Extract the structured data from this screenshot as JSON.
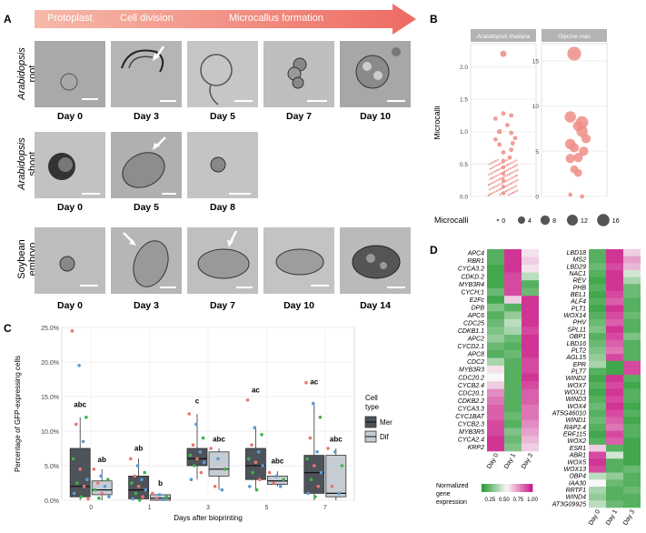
{
  "panels": {
    "a": "A",
    "b": "B",
    "c": "C",
    "d": "D"
  },
  "panel_a": {
    "arrow_stages": [
      "Protoplast",
      "Cell division",
      "Microcallus formation"
    ],
    "rows": [
      {
        "label_italic": "Arabidopsis",
        "label_rest": "root",
        "days": [
          "Day 0",
          "Day 3",
          "Day 5",
          "Day 7",
          "Day 10"
        ]
      },
      {
        "label_italic": "Arabidopsis",
        "label_rest": "shoot",
        "days": [
          "Day 0",
          "Day 5",
          "Day 8"
        ]
      },
      {
        "label_italic": "",
        "label_rest": "Soybean embryo",
        "days": [
          "Day 0",
          "Day 3",
          "Day 7",
          "Day 10",
          "Day 14"
        ]
      }
    ]
  },
  "chart_data": [
    {
      "type": "scatter",
      "panel": "B",
      "ylabel": "Microcalli",
      "facets": [
        {
          "name": "Arabidopsis thaliana",
          "yticks": [
            0.0,
            0.5,
            1.0,
            1.5,
            2.0
          ],
          "ylim": [
            0,
            2.3
          ],
          "points": [
            [
              0.0,
              2.2,
              2
            ],
            [
              0.0,
              1.28,
              0.6
            ],
            [
              0.1,
              1.25,
              0.6
            ],
            [
              -0.1,
              1.2,
              0.6
            ],
            [
              0.05,
              1.1,
              0.6
            ],
            [
              -0.05,
              1.0,
              1
            ],
            [
              0.1,
              0.98,
              0.6
            ],
            [
              0.15,
              0.9,
              0.6
            ],
            [
              -0.1,
              0.88,
              0.6
            ],
            [
              0.12,
              0.82,
              0.6
            ],
            [
              -0.05,
              0.8,
              0.6
            ],
            [
              0.1,
              0.72,
              0.6
            ],
            [
              0.0,
              0.68,
              0.6
            ],
            [
              0.08,
              0.6,
              0.6
            ],
            [
              0.0,
              0.55,
              0.5
            ],
            [
              0.0,
              0.45,
              0.4
            ],
            [
              0.0,
              0.35,
              0.4
            ],
            [
              0.0,
              0.25,
              0.4
            ],
            [
              0.0,
              0.15,
              0.4
            ],
            [
              0.0,
              0.05,
              0.4
            ]
          ]
        },
        {
          "name": "Glycine max",
          "yticks": [
            0,
            5,
            10,
            15
          ],
          "ylim": [
            0,
            16.5
          ],
          "points": [
            [
              0.0,
              15.8,
              16
            ],
            [
              -0.05,
              8.8,
              10
            ],
            [
              0.1,
              8.2,
              12
            ],
            [
              0.05,
              7.8,
              8
            ],
            [
              0.1,
              7.2,
              10
            ],
            [
              0.15,
              6.4,
              6
            ],
            [
              -0.05,
              5.8,
              8
            ],
            [
              0.0,
              5.4,
              6
            ],
            [
              0.12,
              5.0,
              6
            ],
            [
              0.05,
              4.3,
              6
            ],
            [
              -0.05,
              4.2,
              6
            ],
            [
              0.0,
              3.0,
              4
            ],
            [
              0.05,
              2.6,
              4
            ],
            [
              -0.05,
              0.2,
              0.5
            ],
            [
              0.1,
              0.0,
              0.5
            ]
          ]
        }
      ],
      "legend": {
        "title": "Microcalli",
        "values": [
          0,
          4,
          8,
          12,
          16
        ]
      }
    },
    {
      "type": "box",
      "panel": "C",
      "ylabel": "Percentage of GFP-expressing cells",
      "xlabel": "Days after bioprinting",
      "categories": [
        "0",
        "1",
        "3",
        "5",
        "7"
      ],
      "ylim": [
        0,
        25
      ],
      "yticks": [
        "0.0%",
        "5.0%",
        "10.0%",
        "15.0%",
        "20.0%",
        "25.0%"
      ],
      "legend": {
        "title": "Cell type",
        "entries": [
          "Mer",
          "Dif"
        ]
      },
      "series": [
        {
          "name": "Mer",
          "color": "#4d5359",
          "boxes": [
            {
              "min": 0,
              "q1": 0.5,
              "median": 2,
              "q3": 7.5,
              "max": 12
            },
            {
              "min": 0,
              "q1": 0.2,
              "median": 1.5,
              "q3": 3.5,
              "max": 6
            },
            {
              "min": 3,
              "q1": 5,
              "median": 6,
              "q3": 7.5,
              "max": 12.5
            },
            {
              "min": 1.5,
              "q1": 3,
              "median": 5,
              "q3": 7.5,
              "max": 10.5
            },
            {
              "min": 0,
              "q1": 1,
              "median": 4,
              "q3": 6.5,
              "max": 14
            }
          ]
        },
        {
          "name": "Dif",
          "color": "#c6ccd4",
          "boxes": [
            {
              "min": 0,
              "q1": 0.8,
              "median": 1.5,
              "q3": 2.8,
              "max": 4.5
            },
            {
              "min": 0,
              "q1": 0,
              "median": 0.3,
              "q3": 0.8,
              "max": 1
            },
            {
              "min": 1.5,
              "q1": 3.5,
              "median": 4.5,
              "q3": 7,
              "max": 7.5
            },
            {
              "min": 2,
              "q1": 2.3,
              "median": 2.8,
              "q3": 3.5,
              "max": 4.2
            },
            {
              "min": 0,
              "q1": 0.5,
              "median": 1,
              "q3": 6.5,
              "max": 7.5
            }
          ]
        }
      ],
      "letters": [
        {
          "cat": 0,
          "group": "Mer",
          "text": "abc",
          "y": 13.5
        },
        {
          "cat": 0,
          "group": "Dif",
          "text": "ab",
          "y": 5.5
        },
        {
          "cat": 1,
          "group": "Mer",
          "text": "ab",
          "y": 7.2
        },
        {
          "cat": 1,
          "group": "Dif",
          "text": "b",
          "y": 2.1
        },
        {
          "cat": 2,
          "group": "Mer",
          "text": "c",
          "y": 14
        },
        {
          "cat": 2,
          "group": "Dif",
          "text": "abc",
          "y": 8.5
        },
        {
          "cat": 3,
          "group": "Mer",
          "text": "ac",
          "y": 15.6
        },
        {
          "cat": 3,
          "group": "Dif",
          "text": "abc",
          "y": 5.3
        },
        {
          "cat": 4,
          "group": "Mer",
          "text": "ac",
          "y": 16.8
        },
        {
          "cat": 4,
          "group": "Dif",
          "text": "abc",
          "y": 8.5
        }
      ],
      "points": [
        {
          "cat": 0,
          "group": "Mer",
          "y": [
            24.5,
            19.5,
            12,
            11,
            8.5,
            6,
            4.5,
            3,
            2.5,
            2,
            1,
            0.5,
            0.2
          ]
        },
        {
          "cat": 0,
          "group": "Dif",
          "y": [
            4.5,
            3.5,
            3,
            2.5,
            2,
            1.5,
            1,
            0.5,
            0.3
          ]
        },
        {
          "cat": 1,
          "group": "Mer",
          "y": [
            6,
            5,
            4,
            3.5,
            3,
            2.5,
            2,
            1.5,
            1,
            0.5,
            0.2,
            0
          ]
        },
        {
          "cat": 1,
          "group": "Dif",
          "y": [
            1,
            0.8,
            0.5,
            0.3,
            0.1
          ]
        },
        {
          "cat": 2,
          "group": "Mer",
          "y": [
            12.5,
            11,
            9,
            8,
            7,
            6.5,
            6,
            5.5,
            5,
            4,
            3
          ]
        },
        {
          "cat": 2,
          "group": "Dif",
          "y": [
            7.5,
            6,
            4.5,
            2,
            1.5
          ]
        },
        {
          "cat": 3,
          "group": "Mer",
          "y": [
            14.5,
            10.5,
            9.5,
            8,
            7,
            6,
            5.5,
            5,
            4,
            3,
            2,
            1.5
          ]
        },
        {
          "cat": 3,
          "group": "Dif",
          "y": [
            4,
            3.5,
            3,
            2.5,
            2
          ]
        },
        {
          "cat": 4,
          "group": "Mer",
          "y": [
            17,
            14,
            12,
            9,
            7,
            6,
            5,
            4,
            3,
            2,
            1,
            0.5
          ]
        },
        {
          "cat": 4,
          "group": "Dif",
          "y": [
            7.5,
            7,
            5,
            2,
            1
          ]
        }
      ]
    },
    {
      "type": "heatmap",
      "panel": "D",
      "columns": [
        "Day 0",
        "Day 1",
        "Day 3"
      ],
      "legend": {
        "title": [
          "Normalized",
          "gene",
          "expression"
        ],
        "ticks": [
          "0.25",
          "0.50",
          "0.75",
          "1.00"
        ]
      },
      "heatmaps": [
        {
          "rows": [
            "APC4",
            "RBR1",
            "CYCA3.2",
            "CDKD.2",
            "MYB3R4",
            "CYCH;1",
            "E2Fc",
            "DPB",
            "APC6",
            "CDC25",
            "CDKB1.1",
            "APC2",
            "CYCD2.1",
            "APC8",
            "CDC2",
            "MYB3R3",
            "CDC20.2",
            "CYCB2.4",
            "CDC20.1",
            "CDKB2.2",
            "CYCA3.3",
            "CYC1BAT",
            "CYCB2.3",
            "MYB3R5",
            "CYCA2.4",
            "KRP2"
          ],
          "values": [
            [
              0.1,
              0.95,
              0.55
            ],
            [
              0.1,
              0.95,
              0.6
            ],
            [
              0.05,
              0.95,
              0.55
            ],
            [
              0.05,
              0.9,
              0.35
            ],
            [
              0.05,
              0.9,
              0.1
            ],
            [
              0.15,
              0.9,
              0.15
            ],
            [
              0.05,
              0.6,
              0.95
            ],
            [
              0.2,
              0.1,
              0.95
            ],
            [
              0.1,
              0.25,
              0.95
            ],
            [
              0.15,
              0.35,
              0.95
            ],
            [
              0.2,
              0.3,
              0.9
            ],
            [
              0.25,
              0.15,
              0.95
            ],
            [
              0.15,
              0.1,
              0.95
            ],
            [
              0.1,
              0.15,
              0.95
            ],
            [
              0.3,
              0.1,
              0.9
            ],
            [
              0.55,
              0.1,
              0.9
            ],
            [
              0.5,
              0.1,
              0.95
            ],
            [
              0.6,
              0.1,
              0.9
            ],
            [
              0.75,
              0.1,
              0.85
            ],
            [
              0.8,
              0.1,
              0.85
            ],
            [
              0.85,
              0.1,
              0.8
            ],
            [
              0.85,
              0.15,
              0.8
            ],
            [
              0.9,
              0.1,
              0.75
            ],
            [
              0.9,
              0.2,
              0.7
            ],
            [
              0.95,
              0.15,
              0.65
            ],
            [
              0.95,
              0.2,
              0.6
            ]
          ]
        },
        {
          "rows": [
            "LBD18",
            "MS2",
            "LBD29",
            "NAC1",
            "REV",
            "PHB",
            "BEL1",
            "ALF4",
            "PLT1",
            "WOX14",
            "PHV",
            "SPL11",
            "OBP1",
            "LBD16",
            "PLT2",
            "AGL15",
            "EPR",
            "PLT7",
            "WIND2",
            "WOX7",
            "WOX11",
            "WIND3",
            "WOX4",
            "AT5G46010",
            "WIND1",
            "RAP2.4",
            "ERF115",
            "WOX2",
            "ESR1",
            "ABR1",
            "WOX5",
            "WOX13",
            "OBP4",
            "IAA30",
            "RRTF1",
            "WIND4",
            "AT3G09925"
          ],
          "values": [
            [
              0.1,
              0.95,
              0.6
            ],
            [
              0.1,
              0.95,
              0.7
            ],
            [
              0.15,
              0.9,
              0.65
            ],
            [
              0.1,
              0.95,
              0.4
            ],
            [
              0.05,
              0.95,
              0.3
            ],
            [
              0.1,
              0.95,
              0.15
            ],
            [
              0.05,
              0.9,
              0.15
            ],
            [
              0.1,
              0.85,
              0.1
            ],
            [
              0.05,
              0.95,
              0.1
            ],
            [
              0.1,
              0.9,
              0.15
            ],
            [
              0.15,
              0.85,
              0.1
            ],
            [
              0.2,
              0.95,
              0.1
            ],
            [
              0.1,
              0.9,
              0.2
            ],
            [
              0.15,
              0.85,
              0.1
            ],
            [
              0.2,
              0.8,
              0.1
            ],
            [
              0.25,
              0.9,
              0.1
            ],
            [
              0.3,
              0.05,
              0.9
            ],
            [
              0.1,
              0.05,
              0.9
            ],
            [
              0.05,
              0.95,
              0.1
            ],
            [
              0.1,
              0.9,
              0.05
            ],
            [
              0.05,
              0.95,
              0.1
            ],
            [
              0.1,
              0.9,
              0.1
            ],
            [
              0.15,
              0.95,
              0.05
            ],
            [
              0.1,
              0.9,
              0.1
            ],
            [
              0.15,
              0.85,
              0.05
            ],
            [
              0.1,
              0.8,
              0.1
            ],
            [
              0.05,
              0.9,
              0.1
            ],
            [
              0.1,
              0.85,
              0.05
            ],
            [
              0.6,
              0.1,
              0.05
            ],
            [
              0.9,
              0.4,
              0.05
            ],
            [
              0.95,
              0.1,
              0.05
            ],
            [
              0.9,
              0.1,
              0.15
            ],
            [
              0.35,
              0.25,
              0.1
            ],
            [
              0.5,
              0.15,
              0.1
            ],
            [
              0.3,
              0.1,
              0.15
            ],
            [
              0.25,
              0.1,
              0.1
            ],
            [
              0.35,
              0.15,
              0.1
            ]
          ]
        }
      ]
    }
  ]
}
